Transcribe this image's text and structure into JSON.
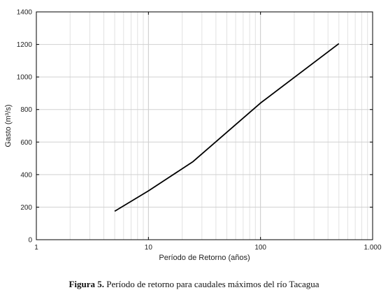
{
  "caption": {
    "label": "Figura 5.",
    "text": " Período de retorno para caudales máximos del río Tacagua"
  },
  "chart_data": {
    "type": "line",
    "xscale": "log",
    "xlim": [
      1,
      1000
    ],
    "ylim": [
      0,
      1400
    ],
    "xticks": [
      1,
      10,
      100,
      1000
    ],
    "xtick_labels": [
      "1",
      "10",
      "100",
      "1.000"
    ],
    "yticks": [
      0,
      200,
      400,
      600,
      800,
      1000,
      1200,
      1400
    ],
    "xlabel": "Período de Retorno (años)",
    "ylabel": "Gasto (m³/s)",
    "grid": true,
    "series": [
      {
        "x": [
          5,
          10,
          25,
          50,
          100,
          500
        ],
        "y": [
          175,
          300,
          480,
          660,
          840,
          1205
        ],
        "color": "#000000"
      }
    ]
  }
}
